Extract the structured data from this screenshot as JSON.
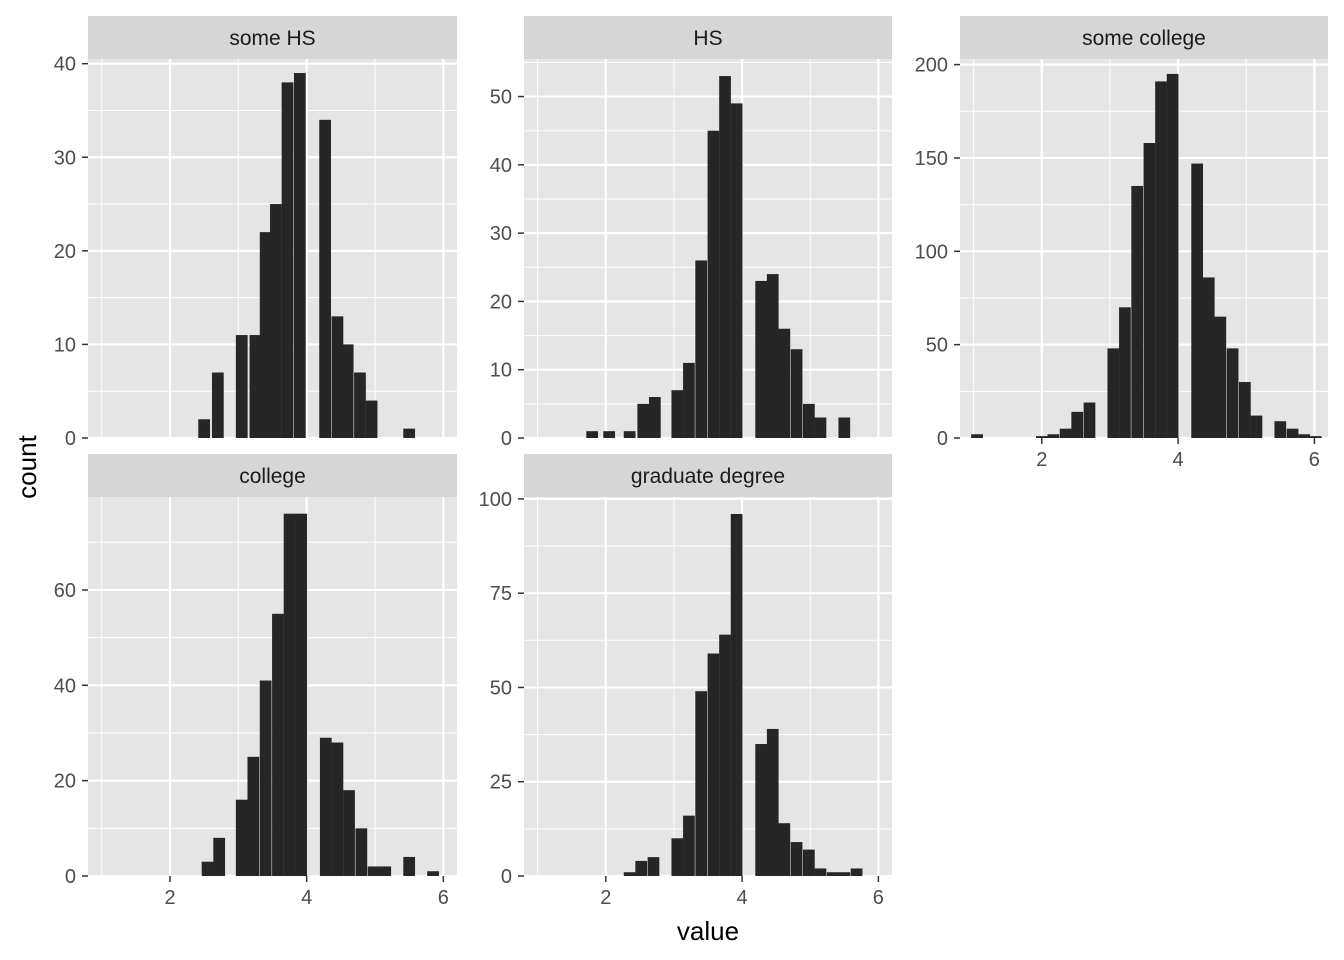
{
  "chart_data": {
    "type": "bar",
    "subtype": "faceted-histogram",
    "xlabel": "value",
    "ylabel": "count",
    "x_ticks": [
      2,
      4,
      6
    ],
    "xlim": [
      0.8,
      6.2
    ],
    "grid": true,
    "colors": {
      "panel_background": "#e5e5e5",
      "grid": "#ffffff",
      "strip_background": "#d6d6d6",
      "bar": "#262626"
    },
    "facets": [
      {
        "label": "some HS",
        "ylim": [
          0,
          40.5
        ],
        "y_ticks": [
          0,
          10,
          20,
          30,
          40
        ],
        "bins": [
          {
            "x": 2.5,
            "count": 2
          },
          {
            "x": 2.7,
            "count": 7
          },
          {
            "x": 3.05,
            "count": 11
          },
          {
            "x": 3.25,
            "count": 11
          },
          {
            "x": 3.4,
            "count": 22
          },
          {
            "x": 3.55,
            "count": 25
          },
          {
            "x": 3.72,
            "count": 38
          },
          {
            "x": 3.9,
            "count": 39
          },
          {
            "x": 4.27,
            "count": 34
          },
          {
            "x": 4.45,
            "count": 13
          },
          {
            "x": 4.6,
            "count": 10
          },
          {
            "x": 4.78,
            "count": 7
          },
          {
            "x": 4.95,
            "count": 4
          },
          {
            "x": 5.5,
            "count": 1
          }
        ]
      },
      {
        "label": "HS",
        "ylim": [
          0,
          55.5
        ],
        "y_ticks": [
          0,
          10,
          20,
          30,
          40,
          50
        ],
        "bins": [
          {
            "x": 1.8,
            "count": 1
          },
          {
            "x": 2.05,
            "count": 1
          },
          {
            "x": 2.35,
            "count": 1
          },
          {
            "x": 2.55,
            "count": 5
          },
          {
            "x": 2.72,
            "count": 6
          },
          {
            "x": 3.05,
            "count": 7
          },
          {
            "x": 3.22,
            "count": 11
          },
          {
            "x": 3.4,
            "count": 26
          },
          {
            "x": 3.58,
            "count": 45
          },
          {
            "x": 3.75,
            "count": 53
          },
          {
            "x": 3.92,
            "count": 49
          },
          {
            "x": 4.28,
            "count": 23
          },
          {
            "x": 4.45,
            "count": 24
          },
          {
            "x": 4.62,
            "count": 16
          },
          {
            "x": 4.8,
            "count": 13
          },
          {
            "x": 4.98,
            "count": 5
          },
          {
            "x": 5.15,
            "count": 3
          },
          {
            "x": 5.5,
            "count": 3
          }
        ]
      },
      {
        "label": "some college",
        "ylim": [
          0,
          203
        ],
        "y_ticks": [
          0,
          50,
          100,
          150,
          200
        ],
        "bins": [
          {
            "x": 1.05,
            "count": 2
          },
          {
            "x": 2.0,
            "count": 1
          },
          {
            "x": 2.17,
            "count": 2
          },
          {
            "x": 2.35,
            "count": 5
          },
          {
            "x": 2.52,
            "count": 14
          },
          {
            "x": 2.7,
            "count": 19
          },
          {
            "x": 3.05,
            "count": 48
          },
          {
            "x": 3.22,
            "count": 70
          },
          {
            "x": 3.4,
            "count": 135
          },
          {
            "x": 3.58,
            "count": 158
          },
          {
            "x": 3.75,
            "count": 191
          },
          {
            "x": 3.92,
            "count": 195
          },
          {
            "x": 4.28,
            "count": 147
          },
          {
            "x": 4.45,
            "count": 86
          },
          {
            "x": 4.62,
            "count": 65
          },
          {
            "x": 4.8,
            "count": 48
          },
          {
            "x": 4.98,
            "count": 30
          },
          {
            "x": 5.15,
            "count": 12
          },
          {
            "x": 5.5,
            "count": 9
          },
          {
            "x": 5.68,
            "count": 5
          },
          {
            "x": 5.85,
            "count": 2
          },
          {
            "x": 6.02,
            "count": 1
          }
        ]
      },
      {
        "label": "college",
        "ylim": [
          0,
          79.5
        ],
        "y_ticks": [
          0,
          20,
          40,
          60
        ],
        "bins": [
          {
            "x": 2.55,
            "count": 3
          },
          {
            "x": 2.72,
            "count": 8
          },
          {
            "x": 3.05,
            "count": 16
          },
          {
            "x": 3.22,
            "count": 25
          },
          {
            "x": 3.4,
            "count": 41
          },
          {
            "x": 3.58,
            "count": 55
          },
          {
            "x": 3.75,
            "count": 76
          },
          {
            "x": 3.92,
            "count": 76
          },
          {
            "x": 4.28,
            "count": 29
          },
          {
            "x": 4.45,
            "count": 28
          },
          {
            "x": 4.62,
            "count": 18
          },
          {
            "x": 4.8,
            "count": 10
          },
          {
            "x": 4.98,
            "count": 2
          },
          {
            "x": 5.15,
            "count": 2
          },
          {
            "x": 5.5,
            "count": 4
          },
          {
            "x": 5.85,
            "count": 1
          }
        ]
      },
      {
        "label": "graduate degree",
        "ylim": [
          0,
          100.5
        ],
        "y_ticks": [
          0,
          25,
          50,
          75,
          100
        ],
        "bins": [
          {
            "x": 2.35,
            "count": 1
          },
          {
            "x": 2.52,
            "count": 4
          },
          {
            "x": 2.7,
            "count": 5
          },
          {
            "x": 3.05,
            "count": 10
          },
          {
            "x": 3.22,
            "count": 16
          },
          {
            "x": 3.4,
            "count": 49
          },
          {
            "x": 3.58,
            "count": 59
          },
          {
            "x": 3.75,
            "count": 64
          },
          {
            "x": 3.92,
            "count": 96
          },
          {
            "x": 4.28,
            "count": 35
          },
          {
            "x": 4.45,
            "count": 39
          },
          {
            "x": 4.62,
            "count": 14
          },
          {
            "x": 4.8,
            "count": 9
          },
          {
            "x": 4.98,
            "count": 7
          },
          {
            "x": 5.15,
            "count": 2
          },
          {
            "x": 5.33,
            "count": 1
          },
          {
            "x": 5.5,
            "count": 1
          },
          {
            "x": 5.68,
            "count": 2
          }
        ]
      }
    ]
  }
}
